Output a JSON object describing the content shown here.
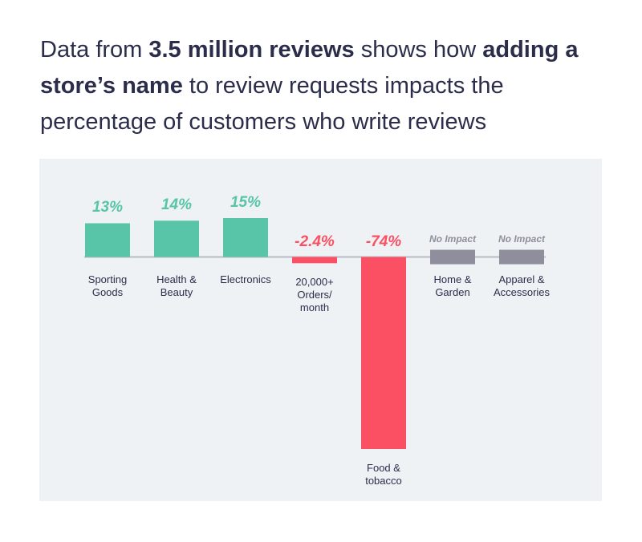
{
  "chart_data": {
    "type": "bar",
    "title": [
      {
        "text": "Data from ",
        "bold": false
      },
      {
        "text": "3.5 million reviews",
        "bold": true
      },
      {
        "text": " shows how ",
        "bold": false
      },
      {
        "text": "adding a store’s name",
        "bold": true
      },
      {
        "text": " to review requests impacts the percentage of customers who write reviews",
        "bold": false
      }
    ],
    "categories": [
      "Sporting\nGoods",
      "Health &\nBeauty",
      "Electronics",
      "20,000+\nOrders/\nmonth",
      "Food &\ntobacco",
      "Home &\nGarden",
      "Apparel &\nAccessories"
    ],
    "values": [
      13,
      14,
      15,
      -2.4,
      -74,
      0,
      0
    ],
    "value_labels": [
      "13%",
      "14%",
      "15%",
      "-2.4%",
      "-74%",
      "No Impact",
      "No Impact"
    ],
    "colors": [
      "#58c4a8",
      "#58c4a8",
      "#58c4a8",
      "#fb5064",
      "#fb5064",
      "#8e8e9c",
      "#8e8e9c"
    ]
  }
}
